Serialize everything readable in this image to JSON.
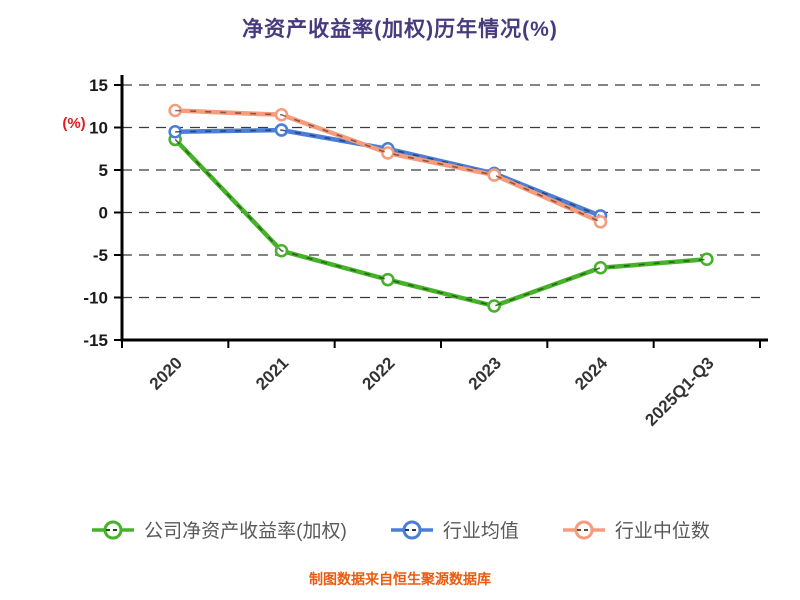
{
  "title": "净资产收益率(加权)历年情况(%)",
  "footer": "制图数据来自恒生聚源数据库",
  "colors": {
    "title": "#473a7f",
    "footer": "#ea5b0f",
    "y_axis_label": "#e21c1c",
    "axis": "#000000",
    "legend_text": "#595959"
  },
  "chart_data": {
    "type": "line",
    "title": "净资产收益率(加权)历年情况(%)",
    "ylabel": "(%)",
    "categories": [
      "2020",
      "2021",
      "2022",
      "2023",
      "2024",
      "2025Q1-Q3"
    ],
    "series": [
      {
        "name": "公司净资产收益率(加权)",
        "color": "#46b229",
        "values": [
          8.6,
          -4.5,
          -7.9,
          -11.0,
          -6.5,
          -5.5
        ]
      },
      {
        "name": "行业均值",
        "color": "#4a7ed9",
        "values": [
          9.5,
          9.7,
          7.5,
          4.6,
          -0.4,
          null
        ]
      },
      {
        "name": "行业中位数",
        "color": "#f59c7c",
        "values": [
          12.0,
          11.5,
          7.0,
          4.4,
          -1.1,
          null
        ]
      }
    ],
    "ylim": [
      -15,
      15
    ],
    "yticks": [
      15,
      10,
      5,
      0,
      -5,
      -10,
      -15
    ],
    "grid": "horizontal-dashed",
    "legend_position": "bottom",
    "marker": "circle-white-fill",
    "line_style": "solid-with-dark-dash-overlay"
  }
}
